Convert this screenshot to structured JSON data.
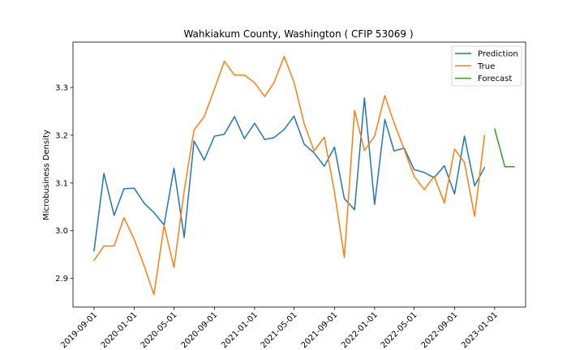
{
  "chart_data": {
    "type": "line",
    "title": "Wahkiakum County, Washington ( CFIP 53069 )",
    "xlabel": "",
    "ylabel": "Microbusiness Density",
    "x_ticks": [
      "2019-09-01",
      "2020-01-01",
      "2020-05-01",
      "2020-09-01",
      "2021-01-01",
      "2021-05-01",
      "2021-09-01",
      "2022-01-01",
      "2022-05-01",
      "2022-09-01",
      "2023-01-01"
    ],
    "y_ticks": [
      2.9,
      3.0,
      3.1,
      3.2,
      3.3
    ],
    "ylim": [
      2.84,
      3.395
    ],
    "xlim": [
      "2019-06-29",
      "2023-04-05"
    ],
    "legend_position": "top-right",
    "grid": false,
    "series": [
      {
        "name": "Prediction",
        "color": "#1f77b4",
        "x": [
          "2019-09-01",
          "2019-10-01",
          "2019-11-01",
          "2019-12-01",
          "2020-01-01",
          "2020-02-01",
          "2020-03-01",
          "2020-04-01",
          "2020-05-01",
          "2020-06-01",
          "2020-07-01",
          "2020-08-01",
          "2020-09-01",
          "2020-10-01",
          "2020-11-01",
          "2020-12-01",
          "2021-01-01",
          "2021-02-01",
          "2021-03-01",
          "2021-04-01",
          "2021-05-01",
          "2021-06-01",
          "2021-07-01",
          "2021-08-01",
          "2021-09-01",
          "2021-10-01",
          "2021-11-01",
          "2021-12-01",
          "2022-01-01",
          "2022-02-01",
          "2022-03-01",
          "2022-04-01",
          "2022-05-01",
          "2022-06-01",
          "2022-07-01",
          "2022-08-01",
          "2022-09-01",
          "2022-10-01",
          "2022-11-01",
          "2022-12-01"
        ],
        "y": [
          2.958,
          3.12,
          3.032,
          3.088,
          3.089,
          3.057,
          3.038,
          3.012,
          3.131,
          2.986,
          3.188,
          3.148,
          3.198,
          3.202,
          3.239,
          3.193,
          3.225,
          3.191,
          3.195,
          3.212,
          3.24,
          3.181,
          3.163,
          3.135,
          3.175,
          3.067,
          3.044,
          3.278,
          3.055,
          3.233,
          3.167,
          3.173,
          3.128,
          3.122,
          3.111,
          3.136,
          3.077,
          3.198,
          3.094,
          3.132
        ]
      },
      {
        "name": "True",
        "color": "#ff7f0e",
        "x": [
          "2019-09-01",
          "2019-10-01",
          "2019-11-01",
          "2019-12-01",
          "2020-01-01",
          "2020-02-01",
          "2020-03-01",
          "2020-04-01",
          "2020-05-01",
          "2020-06-01",
          "2020-07-01",
          "2020-08-01",
          "2020-09-01",
          "2020-10-01",
          "2020-11-01",
          "2020-12-01",
          "2021-01-01",
          "2021-02-01",
          "2021-03-01",
          "2021-04-01",
          "2021-05-01",
          "2021-06-01",
          "2021-07-01",
          "2021-08-01",
          "2021-09-01",
          "2021-10-01",
          "2021-11-01",
          "2021-12-01",
          "2022-01-01",
          "2022-02-01",
          "2022-03-01",
          "2022-04-01",
          "2022-05-01",
          "2022-06-01",
          "2022-07-01",
          "2022-08-01",
          "2022-09-01",
          "2022-10-01",
          "2022-11-01",
          "2022-12-01"
        ],
        "y": [
          2.938,
          2.968,
          2.968,
          3.027,
          2.982,
          2.925,
          2.866,
          3.011,
          2.923,
          3.083,
          3.211,
          3.239,
          3.297,
          3.355,
          3.326,
          3.326,
          3.31,
          3.281,
          3.31,
          3.365,
          3.311,
          3.224,
          3.167,
          3.196,
          3.081,
          2.944,
          3.252,
          3.168,
          3.198,
          3.283,
          3.226,
          3.17,
          3.114,
          3.086,
          3.114,
          3.058,
          3.171,
          3.143,
          3.03,
          3.199
        ]
      },
      {
        "name": "Forecast",
        "color": "#2ca02c",
        "x": [
          "2023-01-01",
          "2023-02-01",
          "2023-03-01"
        ],
        "y": [
          3.213,
          3.134,
          3.134
        ]
      }
    ]
  }
}
